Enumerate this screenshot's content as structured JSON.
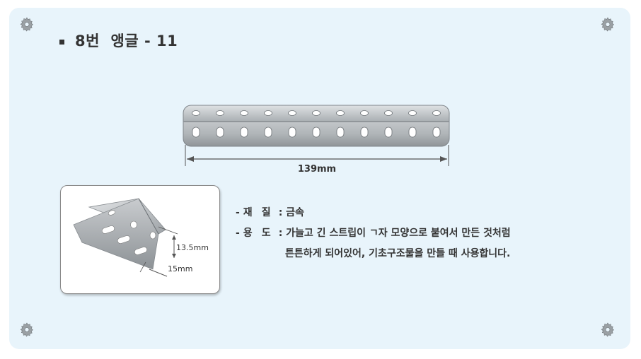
{
  "title": "8번  앵글 - 11",
  "dimension_length": "139mm",
  "photo": {
    "height_label": "13.5mm",
    "width_label": "15mm"
  },
  "specs": {
    "material": {
      "dash": "-",
      "key_a": "재",
      "key_b": "질",
      "colon": ":",
      "value": "금속"
    },
    "usage": {
      "dash": "-",
      "key_a": "용",
      "key_b": "도",
      "colon": ":",
      "line1": "가늘고 긴 스트립이 ㄱ자 모양으로 붙여서 만든 것처럼",
      "line2": "튼튼하게 되어있어, 기초구조물을 만들 때 사용합니다."
    }
  },
  "icons": [
    "gear-icon"
  ],
  "colors": {
    "panel_bg": "#e8f4fb",
    "text": "#333333",
    "metal": "#b8bcbf"
  }
}
